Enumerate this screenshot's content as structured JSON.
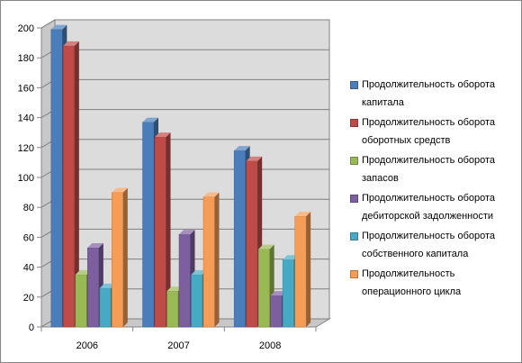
{
  "chart_data": {
    "type": "bar",
    "title": "",
    "xlabel": "",
    "ylabel": "",
    "ylim": [
      0,
      200
    ],
    "y_ticks": [
      0,
      20,
      40,
      60,
      80,
      100,
      120,
      140,
      160,
      180,
      200
    ],
    "categories": [
      "2006",
      "2007",
      "2008"
    ],
    "grid": true,
    "three_d": true,
    "legend_position": "right",
    "series": [
      {
        "name": "Продолжительность оборота капитала",
        "color": "#4a7ebb",
        "values": [
          199,
          137,
          118
        ]
      },
      {
        "name": "Продолжительность оборота оборотных средств",
        "color": "#be4b48",
        "values": [
          188,
          127,
          111
        ]
      },
      {
        "name": "Продолжительность оборота запасов",
        "color": "#98b954",
        "values": [
          35,
          24,
          52
        ]
      },
      {
        "name": "Продолжительность оборота дебиторской задолженности",
        "color": "#7d5fa0",
        "values": [
          53,
          62,
          21
        ]
      },
      {
        "name": "Продолжительность оборота собственного капитала",
        "color": "#46aac5",
        "values": [
          26,
          35,
          45
        ]
      },
      {
        "name": "Продолжительность операционного цикла",
        "color": "#f59d56",
        "values": [
          90,
          87,
          74
        ]
      }
    ]
  }
}
